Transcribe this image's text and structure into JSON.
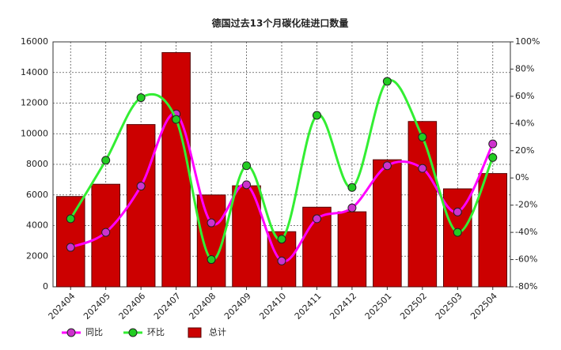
{
  "chart_data": {
    "type": "bar-line",
    "title": "德国过去13个月碳化硅进口数量",
    "categories": [
      "202404",
      "202405",
      "202406",
      "202407",
      "202408",
      "202409",
      "202410",
      "202411",
      "202412",
      "202501",
      "202502",
      "202503",
      "202504"
    ],
    "series": [
      {
        "name": "同比",
        "type": "line",
        "axis": "y2",
        "color": "#ff00ff",
        "marker": "#cc33cc",
        "values": [
          -51,
          -40,
          -6,
          47,
          -33,
          -5,
          -61,
          -30,
          -22,
          9,
          7,
          -25,
          25
        ]
      },
      {
        "name": "环比",
        "type": "line",
        "axis": "y2",
        "color": "#33ee33",
        "marker": "#22cc22",
        "values": [
          -30,
          13,
          59,
          43,
          -60,
          9,
          -45,
          46,
          -7,
          71,
          30,
          -40,
          15
        ]
      },
      {
        "name": "总计",
        "type": "bar",
        "axis": "y",
        "color": "#cc0000",
        "values": [
          5900,
          6700,
          10600,
          15300,
          6000,
          6600,
          3600,
          5200,
          4900,
          8300,
          10800,
          6400,
          7400
        ]
      }
    ],
    "ylim": [
      0,
      16000
    ],
    "yticks": [
      0,
      2000,
      4000,
      6000,
      8000,
      10000,
      12000,
      14000,
      16000
    ],
    "y2lim": [
      -80,
      100
    ],
    "y2ticks": [
      {
        "value": -80,
        "label": "-80%"
      },
      {
        "value": -60,
        "label": "-60%"
      },
      {
        "value": -40,
        "label": "-40%"
      },
      {
        "value": -20,
        "label": "-20%"
      },
      {
        "value": 0,
        "label": "0%"
      },
      {
        "value": 20,
        "label": "20%"
      },
      {
        "value": 40,
        "label": "40%"
      },
      {
        "value": 60,
        "label": "60%"
      },
      {
        "value": 80,
        "label": "80%"
      },
      {
        "value": 100,
        "label": "100%"
      }
    ],
    "grid": true
  }
}
